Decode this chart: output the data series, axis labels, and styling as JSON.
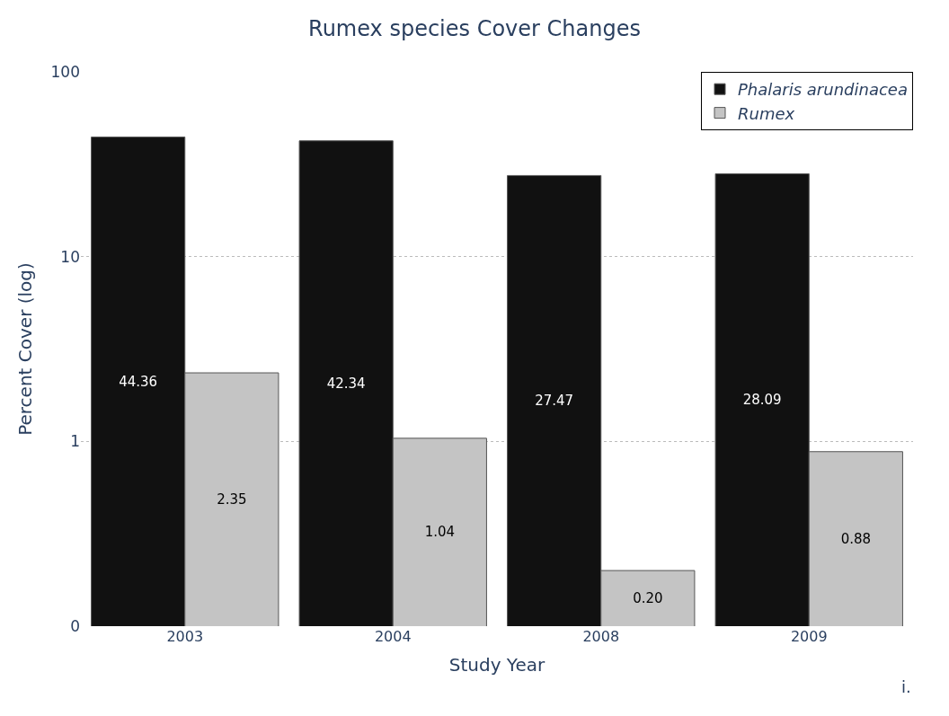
{
  "chart_data": {
    "type": "bar",
    "title": "Rumex species Cover Changes",
    "xlabel": "Study Year",
    "ylabel": "Percent Cover (log)",
    "categories": [
      "2003",
      "2004",
      "2008",
      "2009"
    ],
    "series": [
      {
        "name": "Phalaris arundinacea",
        "color": "#111111",
        "values": [
          44.36,
          42.34,
          27.47,
          28.09
        ],
        "value_labels": [
          "44.36",
          "42.34",
          "27.47",
          "28.09"
        ]
      },
      {
        "name": "Rumex",
        "color": "#c4c4c4",
        "values": [
          2.35,
          1.04,
          0.2,
          0.88
        ],
        "value_labels": [
          "2.35",
          "1.04",
          "0.20",
          "0.88"
        ]
      }
    ],
    "log": "y",
    "ylim": [
      0.1,
      100
    ],
    "yticks": [
      {
        "value": 0.1,
        "label": "0"
      },
      1,
      10,
      100
    ],
    "grid": "y",
    "legend": "top right",
    "annotations": [
      "i."
    ]
  }
}
